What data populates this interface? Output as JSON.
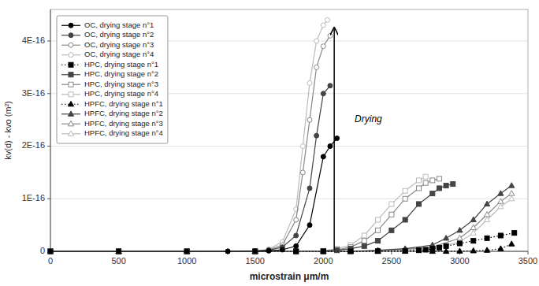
{
  "chart_data": {
    "type": "line",
    "xlabel": "microstrain μm/m",
    "ylabel": "kv(d) - kvo  (m²)",
    "xlim": [
      0,
      3500
    ],
    "ylim": [
      0,
      4.6e-16
    ],
    "xticks": [
      0,
      500,
      1000,
      1500,
      2000,
      2500,
      3000,
      3500
    ],
    "yticks": [
      0,
      {
        "value": 1e-16,
        "label": "1E-16"
      },
      {
        "value": 2e-16,
        "label": "2E-16"
      },
      {
        "value": 3e-16,
        "label": "3E-16"
      },
      {
        "value": 4e-16,
        "label": "4E-16"
      }
    ],
    "grid": "y",
    "legend": "upper left",
    "series": [
      {
        "name": "OC, drying stage n°1",
        "color": "#000000",
        "marker": "circle",
        "line_style": "solid",
        "x": [
          0,
          500,
          1000,
          1300,
          1500,
          1600,
          1700,
          1800,
          1900,
          2000,
          2050,
          2100
        ],
        "values": [
          0,
          0,
          0,
          0,
          5e-19,
          1e-18,
          3e-18,
          1e-17,
          5e-17,
          1.8e-16,
          2e-16,
          2.15e-16
        ]
      },
      {
        "name": "OC, drying stage n°2",
        "color": "#444444",
        "marker": "circle",
        "line_style": "solid",
        "x": [
          0,
          500,
          1000,
          1300,
          1500,
          1600,
          1700,
          1800,
          1900,
          1950,
          2000,
          2050
        ],
        "values": [
          0,
          0,
          0,
          0,
          5e-19,
          2e-18,
          8e-18,
          3e-17,
          1.2e-16,
          2.2e-16,
          3e-16,
          3.15e-16
        ]
      },
      {
        "name": "OC, drying stage n°3",
        "color": "#888888",
        "marker": "circle-open",
        "line_style": "solid",
        "x": [
          0,
          500,
          1000,
          1300,
          1500,
          1600,
          1700,
          1800,
          1850,
          1900,
          1950,
          2000,
          2050
        ],
        "values": [
          0,
          0,
          0,
          0,
          5e-19,
          3e-18,
          1.2e-17,
          6e-17,
          1.5e-16,
          2.5e-16,
          3.5e-16,
          3.9e-16,
          4.1e-16
        ]
      },
      {
        "name": "OC, drying stage n°4",
        "color": "#bbbbbb",
        "marker": "circle-open",
        "line_style": "solid",
        "x": [
          0,
          500,
          1000,
          1300,
          1500,
          1600,
          1700,
          1800,
          1850,
          1900,
          1950,
          2000,
          2030
        ],
        "values": [
          0,
          0,
          0,
          0,
          5e-19,
          4e-18,
          1.8e-17,
          8e-17,
          2e-16,
          3.2e-16,
          4e-16,
          4.3e-16,
          4.4e-16
        ]
      },
      {
        "name": "HPC, drying stage n°1",
        "color": "#000000",
        "marker": "square",
        "line_style": "dotted",
        "x": [
          0,
          500,
          1000,
          1500,
          1800,
          2000,
          2200,
          2400,
          2600,
          2700,
          2750,
          2800,
          2850,
          2900,
          3000,
          3100,
          3200,
          3300,
          3400
        ],
        "values": [
          0,
          0,
          0,
          0,
          0,
          0,
          0,
          5e-19,
          1e-18,
          2e-18,
          3e-18,
          5e-18,
          7e-18,
          1e-17,
          1.5e-17,
          2e-17,
          2.5e-17,
          3e-17,
          3.5e-17
        ]
      },
      {
        "name": "HPC, drying stage n°2",
        "color": "#444444",
        "marker": "square",
        "line_style": "solid",
        "x": [
          0,
          500,
          1000,
          1500,
          1800,
          2000,
          2100,
          2200,
          2300,
          2400,
          2500,
          2600,
          2700,
          2800,
          2850,
          2900,
          2950
        ],
        "values": [
          0,
          0,
          0,
          0,
          0,
          5e-19,
          2e-18,
          5e-18,
          1e-17,
          2e-17,
          4e-17,
          6e-17,
          9e-17,
          1.1e-16,
          1.2e-16,
          1.25e-16,
          1.28e-16
        ]
      },
      {
        "name": "HPC, drying stage n°3",
        "color": "#888888",
        "marker": "square-open",
        "line_style": "solid",
        "x": [
          0,
          500,
          1000,
          1500,
          1800,
          2000,
          2100,
          2200,
          2300,
          2400,
          2500,
          2600,
          2700,
          2750,
          2800,
          2850
        ],
        "values": [
          0,
          0,
          0,
          0,
          0,
          5e-19,
          3e-18,
          8e-18,
          2e-17,
          4e-17,
          7e-17,
          1e-16,
          1.2e-16,
          1.3e-16,
          1.35e-16,
          1.38e-16
        ]
      },
      {
        "name": "HPC, drying stage n°4",
        "color": "#bbbbbb",
        "marker": "square-open",
        "line_style": "solid",
        "x": [
          0,
          500,
          1000,
          1500,
          1800,
          2000,
          2100,
          2200,
          2300,
          2400,
          2500,
          2600,
          2700,
          2750
        ],
        "values": [
          0,
          0,
          0,
          0,
          0,
          1e-18,
          5e-18,
          1.2e-17,
          3e-17,
          6e-17,
          9e-17,
          1.15e-16,
          1.35e-16,
          1.42e-16
        ]
      },
      {
        "name": "HPFC, drying stage n°1",
        "color": "#000000",
        "marker": "triangle",
        "line_style": "dotted",
        "x": [
          0,
          500,
          1000,
          1500,
          2000,
          2200,
          2400,
          2600,
          2800,
          2900,
          3000,
          3100,
          3200,
          3300,
          3380
        ],
        "values": [
          0,
          0,
          0,
          0,
          0,
          0,
          0,
          0,
          0,
          0,
          5e-19,
          1e-18,
          2e-18,
          5e-18,
          1.4e-17
        ]
      },
      {
        "name": "HPFC, drying stage n°2",
        "color": "#444444",
        "marker": "triangle",
        "line_style": "solid",
        "x": [
          0,
          500,
          1000,
          1500,
          2000,
          2200,
          2400,
          2600,
          2800,
          2900,
          3000,
          3100,
          3200,
          3300,
          3380
        ],
        "values": [
          0,
          0,
          0,
          0,
          0,
          0,
          2e-18,
          5e-18,
          1.2e-17,
          2.5e-17,
          4e-17,
          6e-17,
          9e-17,
          1.1e-16,
          1.25e-16
        ]
      },
      {
        "name": "HPFC, drying stage n°3",
        "color": "#888888",
        "marker": "triangle-open",
        "line_style": "solid",
        "x": [
          0,
          500,
          1000,
          1500,
          2000,
          2200,
          2400,
          2600,
          2800,
          3000,
          3100,
          3200,
          3300,
          3380
        ],
        "values": [
          0,
          0,
          0,
          0,
          0,
          0,
          1e-18,
          4e-18,
          8e-18,
          2.5e-17,
          4.5e-17,
          7e-17,
          9.5e-17,
          1.1e-16
        ]
      },
      {
        "name": "HPFC, drying stage n°4",
        "color": "#bbbbbb",
        "marker": "triangle-open",
        "line_style": "solid",
        "x": [
          0,
          500,
          1000,
          1500,
          2000,
          2200,
          2400,
          2600,
          2800,
          3000,
          3100,
          3200,
          3300,
          3380
        ],
        "values": [
          0,
          0,
          0,
          0,
          0,
          0,
          5e-19,
          2e-18,
          6e-18,
          1.8e-17,
          3.5e-17,
          6e-17,
          8.5e-17,
          1e-16
        ]
      }
    ],
    "annotations": [
      {
        "text": "Drying",
        "x": 2230,
        "y": 2.5e-16,
        "arrow": {
          "x": 2080,
          "y_start": 3e-18,
          "y_end": 4.25e-16
        }
      }
    ]
  }
}
